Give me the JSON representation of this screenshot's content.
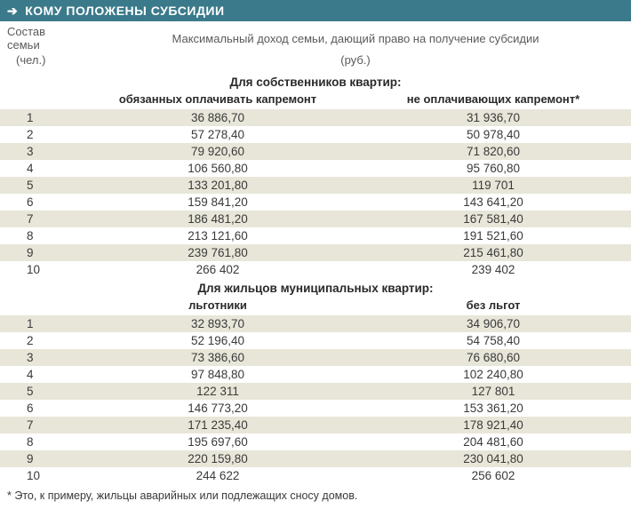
{
  "header": {
    "title": "КОМУ ПОЛОЖЕНЫ СУБСИДИИ"
  },
  "column_headers": {
    "left_line1": "Состав семьи",
    "left_line2": "(чел.)",
    "right_line1": "Максимальный доход семьи, дающий право на получение субсидии",
    "right_line2": "(руб.)"
  },
  "section1": {
    "title": "Для собственников квартир:",
    "col_a": "обязанных оплачивать капремонт",
    "col_b": "не оплачивающих капремонт*",
    "rows": [
      {
        "n": "1",
        "a": "36 886,70",
        "b": "31 936,70"
      },
      {
        "n": "2",
        "a": "57 278,40",
        "b": "50 978,40"
      },
      {
        "n": "3",
        "a": "79 920,60",
        "b": "71 820,60"
      },
      {
        "n": "4",
        "a": "106 560,80",
        "b": "95 760,80"
      },
      {
        "n": "5",
        "a": "133 201,80",
        "b": "119 701"
      },
      {
        "n": "6",
        "a": "159 841,20",
        "b": "143 641,20"
      },
      {
        "n": "7",
        "a": "186 481,20",
        "b": "167 581,40"
      },
      {
        "n": "8",
        "a": "213 121,60",
        "b": "191 521,60"
      },
      {
        "n": "9",
        "a": "239 761,80",
        "b": "215 461,80"
      },
      {
        "n": "10",
        "a": "266 402",
        "b": "239 402"
      }
    ]
  },
  "section2": {
    "title": "Для жильцов муниципальных квартир:",
    "col_a": "льготники",
    "col_b": "без льгот",
    "rows": [
      {
        "n": "1",
        "a": "32 893,70",
        "b": "34 906,70"
      },
      {
        "n": "2",
        "a": "52 196,40",
        "b": "54 758,40"
      },
      {
        "n": "3",
        "a": "73 386,60",
        "b": "76 680,60"
      },
      {
        "n": "4",
        "a": "97 848,80",
        "b": "102 240,80"
      },
      {
        "n": "5",
        "a": "122 311",
        "b": "127 801"
      },
      {
        "n": "6",
        "a": "146 773,20",
        "b": "153 361,20"
      },
      {
        "n": "7",
        "a": "171 235,40",
        "b": "178 921,40"
      },
      {
        "n": "8",
        "a": "195 697,60",
        "b": "204 481,60"
      },
      {
        "n": "9",
        "a": "220 159,80",
        "b": "230 041,80"
      },
      {
        "n": "10",
        "a": "244 622",
        "b": "256 602"
      }
    ]
  },
  "footnote": "* Это, к примеру, жильцы аварийных или подлежащих сносу домов.",
  "colors": {
    "header_bg": "#3a7a8a",
    "stripe_bg": "#e8e6d9",
    "text": "#3a3a3a",
    "muted": "#5a5a5a"
  }
}
